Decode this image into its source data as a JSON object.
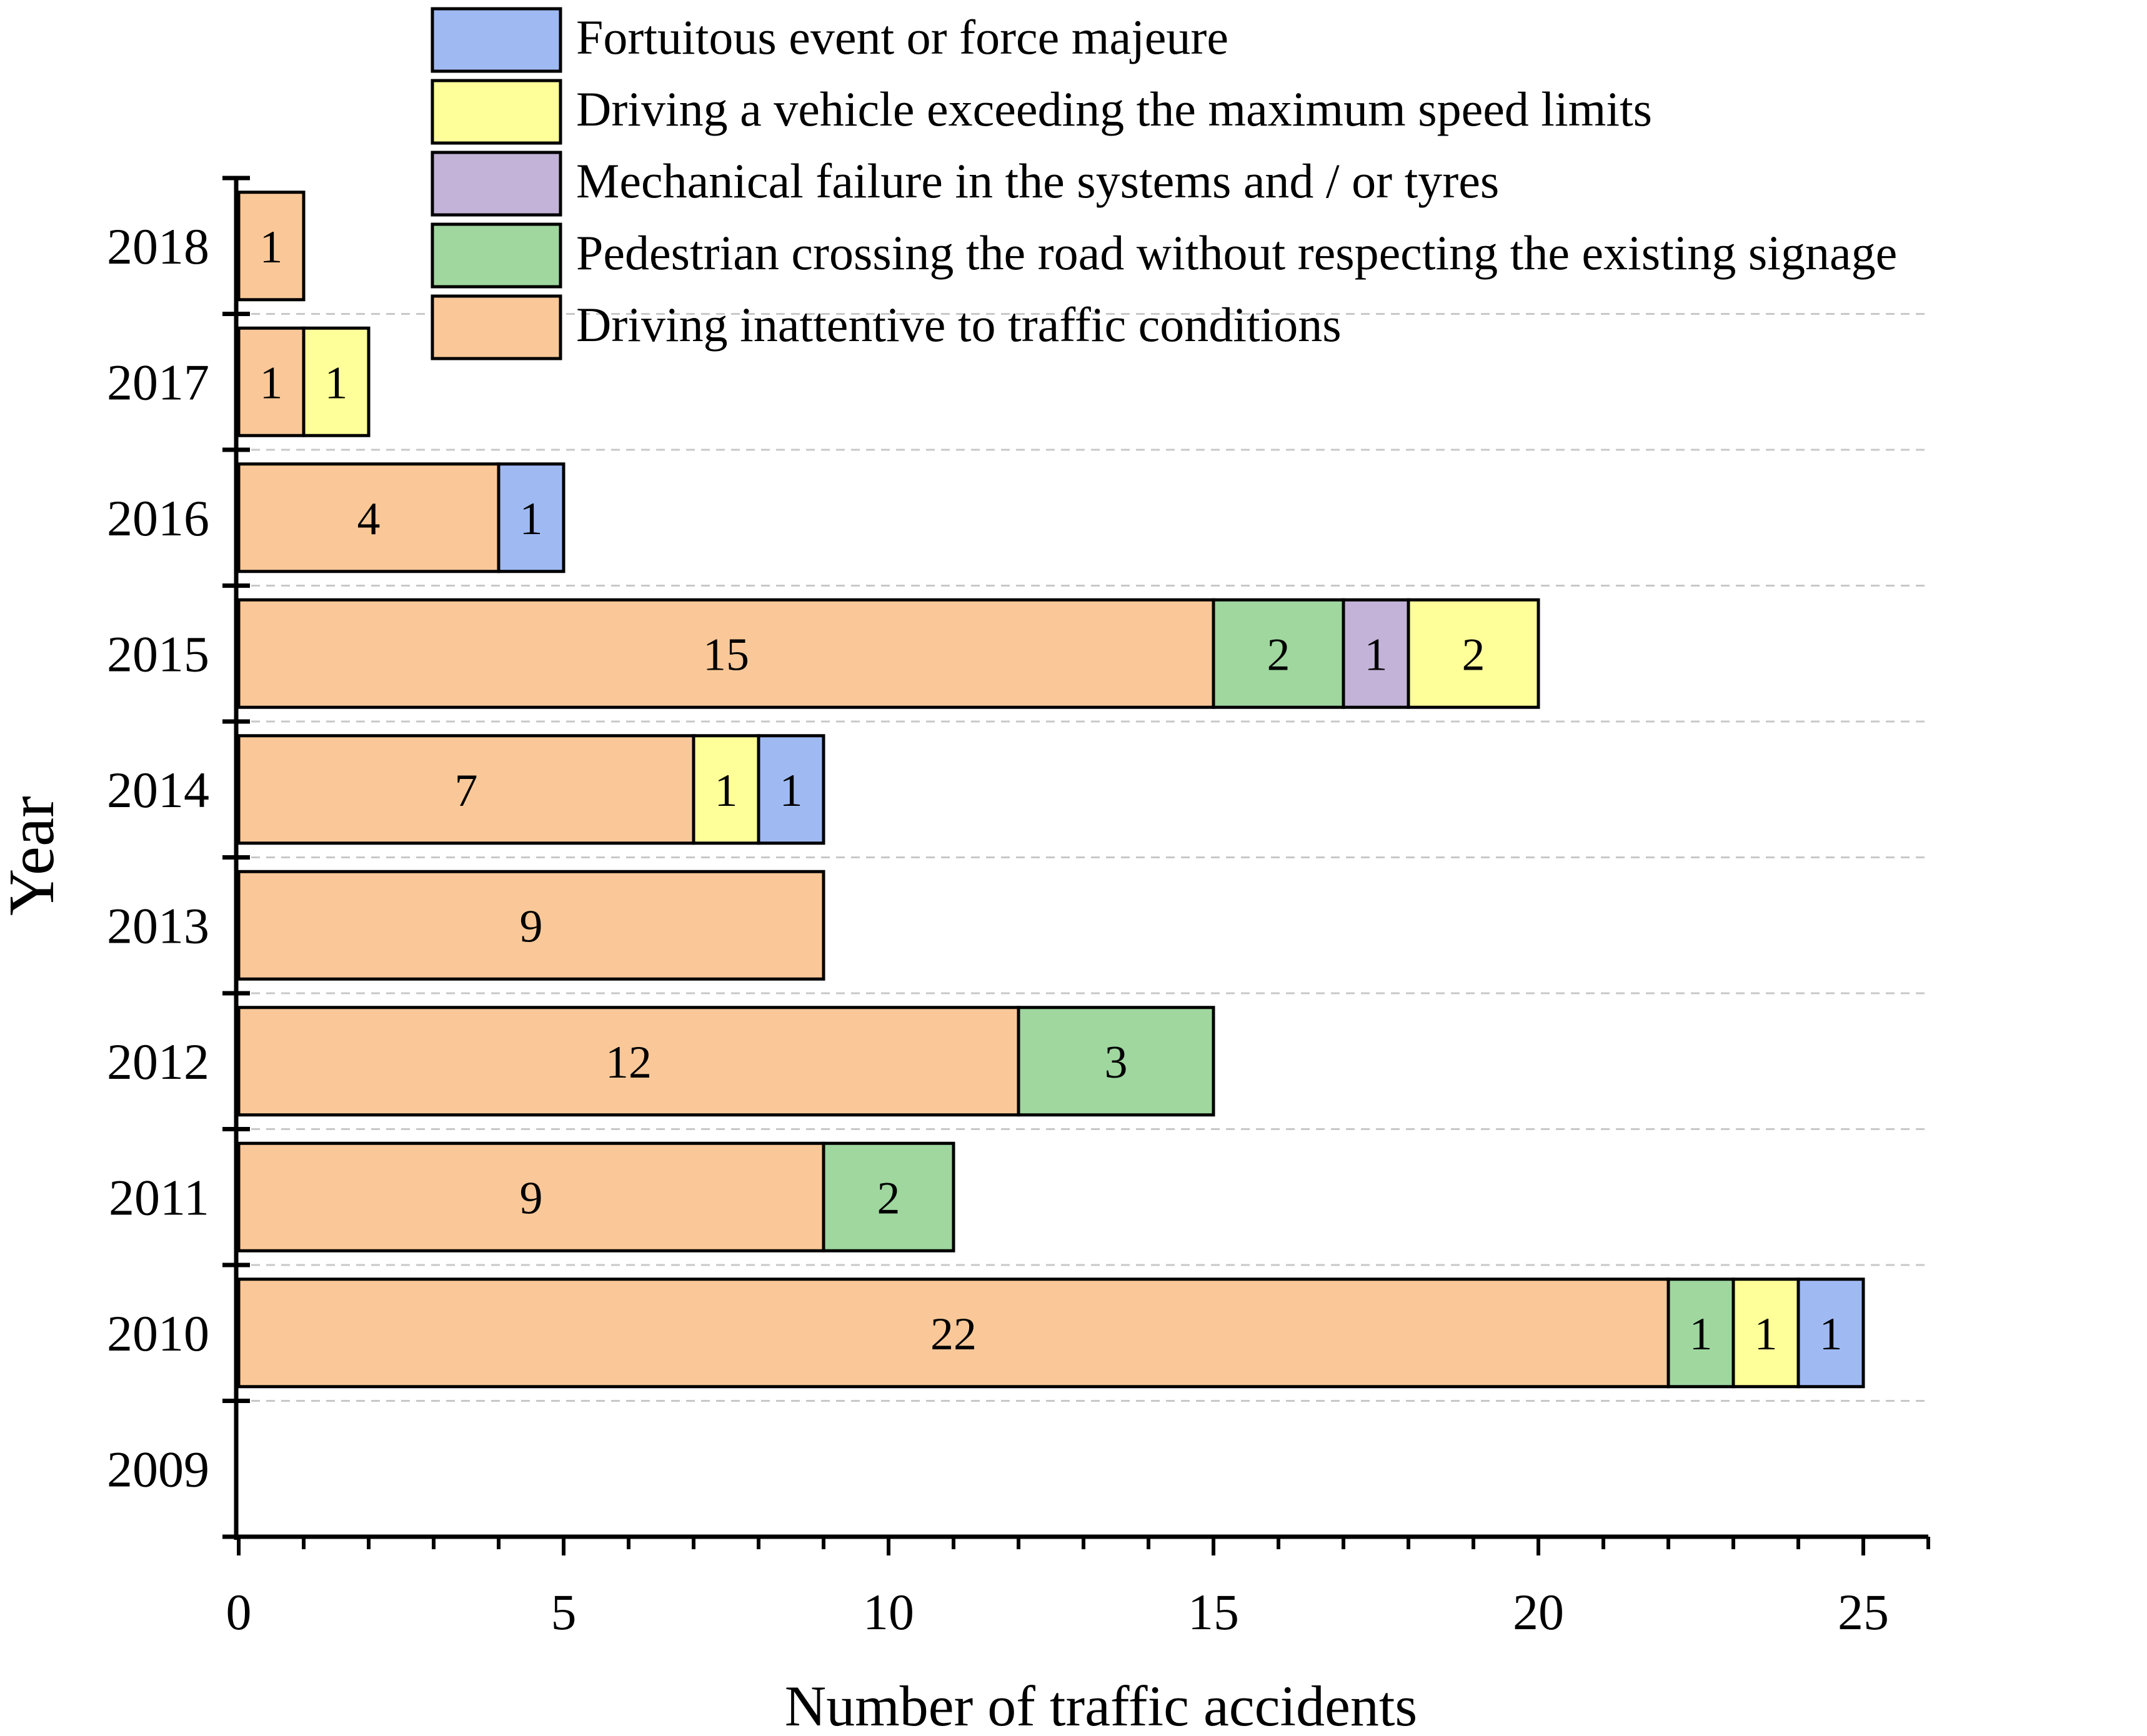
{
  "chart_data": {
    "type": "bar",
    "orientation": "horizontal",
    "stacked": true,
    "title": "",
    "xlabel": "Number of traffic accidents",
    "ylabel": "Year",
    "xlim": [
      0,
      26
    ],
    "x_ticks": [
      0,
      5,
      10,
      15,
      20,
      25
    ],
    "categories": [
      "2018",
      "2017",
      "2016",
      "2015",
      "2014",
      "2013",
      "2012",
      "2011",
      "2010",
      "2009"
    ],
    "series": [
      {
        "name": "Driving inattentive to traffic conditions",
        "color": "#FAC898",
        "values": [
          1,
          1,
          4,
          15,
          7,
          9,
          12,
          9,
          22,
          0
        ]
      },
      {
        "name": "Pedestrian crossing the road without respecting the existing signage",
        "color": "#9FD79F",
        "values": [
          0,
          0,
          0,
          2,
          0,
          0,
          3,
          2,
          1,
          0
        ]
      },
      {
        "name": "Mechanical failure in the systems and / or tyres",
        "color": "#C3B3D8",
        "values": [
          0,
          0,
          0,
          1,
          0,
          0,
          0,
          0,
          0,
          0
        ]
      },
      {
        "name": "Driving a vehicle exceeding the maximum speed limits",
        "color": "#FFFF99",
        "values": [
          0,
          1,
          0,
          2,
          1,
          0,
          0,
          0,
          1,
          0
        ]
      },
      {
        "name": "Fortuitous event or force majeure",
        "color": "#9FBAF3",
        "values": [
          0,
          0,
          1,
          0,
          1,
          0,
          0,
          0,
          1,
          0
        ]
      }
    ],
    "legend_order": [
      "Fortuitous event or force majeure",
      "Driving a vehicle exceeding the maximum speed limits",
      "Mechanical failure in the systems and / or tyres",
      "Pedestrian crossing the road without respecting the existing signage",
      "Driving inattentive to traffic conditions"
    ],
    "legend_position": "top",
    "data_labels": true,
    "grid": "dashed horizontal separators"
  }
}
